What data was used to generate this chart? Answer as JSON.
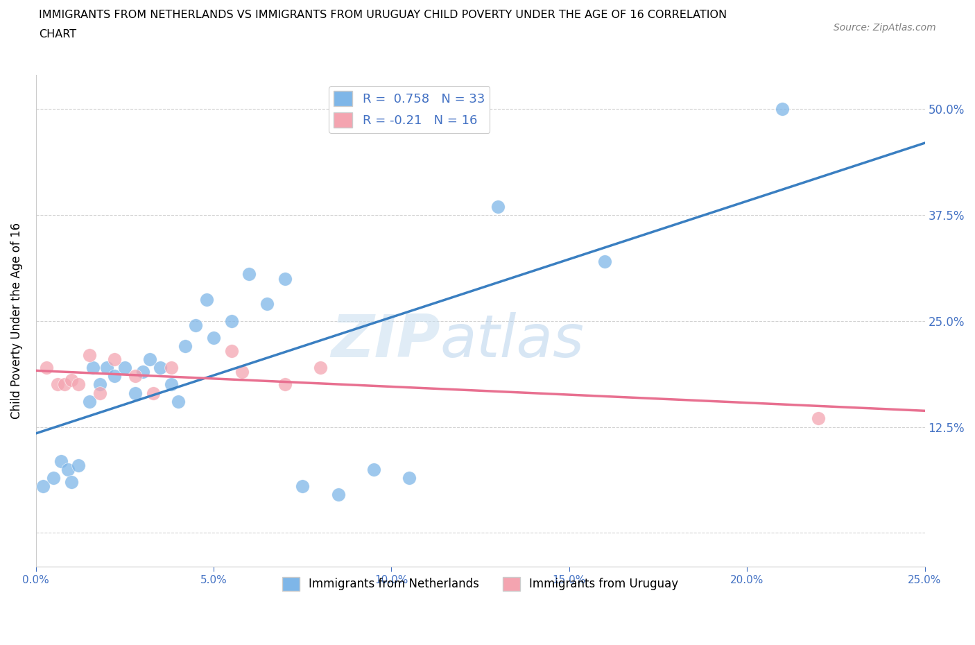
{
  "title_line1": "IMMIGRANTS FROM NETHERLANDS VS IMMIGRANTS FROM URUGUAY CHILD POVERTY UNDER THE AGE OF 16 CORRELATION",
  "title_line2": "CHART",
  "source": "Source: ZipAtlas.com",
  "ylabel": "Child Poverty Under the Age of 16",
  "x_min": 0.0,
  "x_max": 0.25,
  "y_min": -0.04,
  "y_max": 0.54,
  "yticks": [
    0.0,
    0.125,
    0.25,
    0.375,
    0.5
  ],
  "r_netherlands": 0.758,
  "n_netherlands": 33,
  "r_uruguay": -0.21,
  "n_uruguay": 16,
  "blue_color": "#7EB6E8",
  "pink_color": "#F4A4B0",
  "blue_line_color": "#3A7FC1",
  "pink_line_color": "#E87090",
  "axis_color": "#4472C4",
  "netherlands_x": [
    0.002,
    0.005,
    0.007,
    0.009,
    0.01,
    0.012,
    0.015,
    0.016,
    0.018,
    0.02,
    0.022,
    0.025,
    0.028,
    0.03,
    0.032,
    0.035,
    0.038,
    0.04,
    0.042,
    0.045,
    0.048,
    0.05,
    0.055,
    0.06,
    0.065,
    0.07,
    0.075,
    0.085,
    0.095,
    0.105,
    0.13,
    0.16,
    0.21
  ],
  "netherlands_y": [
    0.055,
    0.065,
    0.085,
    0.075,
    0.06,
    0.08,
    0.155,
    0.195,
    0.175,
    0.195,
    0.185,
    0.195,
    0.165,
    0.19,
    0.205,
    0.195,
    0.175,
    0.155,
    0.22,
    0.245,
    0.275,
    0.23,
    0.25,
    0.305,
    0.27,
    0.3,
    0.055,
    0.045,
    0.075,
    0.065,
    0.385,
    0.32,
    0.5
  ],
  "uruguay_x": [
    0.003,
    0.006,
    0.008,
    0.01,
    0.012,
    0.015,
    0.018,
    0.022,
    0.028,
    0.033,
    0.038,
    0.055,
    0.058,
    0.07,
    0.08,
    0.22
  ],
  "uruguay_y": [
    0.195,
    0.175,
    0.175,
    0.18,
    0.175,
    0.21,
    0.165,
    0.205,
    0.185,
    0.165,
    0.195,
    0.215,
    0.19,
    0.175,
    0.195,
    0.135
  ]
}
